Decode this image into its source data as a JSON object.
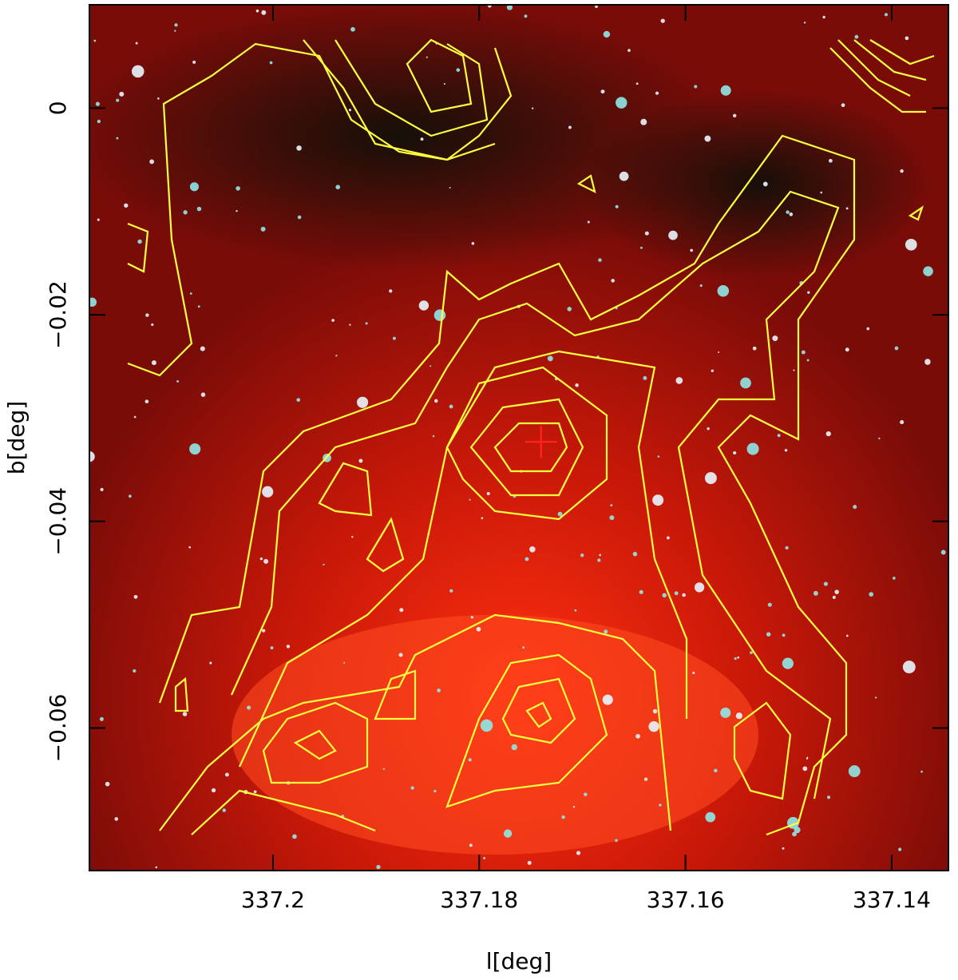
{
  "chart_data": {
    "type": "image",
    "x_label": "l[deg]",
    "y_label": "b[deg]",
    "xlim": [
      337.2178,
      337.1345
    ],
    "ylim": [
      -0.0738,
      0.01
    ],
    "xticks": [
      337.2,
      337.18,
      337.16,
      337.14
    ],
    "yticks": [
      0,
      {
        "value": -0.02,
        "label": "−0.02"
      },
      {
        "value": -0.04,
        "label": "−0.04"
      },
      {
        "value": -0.06,
        "label": "−0.06"
      }
    ],
    "marker": {
      "x": 337.174,
      "y": -0.0323,
      "color": "#ff2020"
    },
    "contour_color": "#ffff40"
  }
}
